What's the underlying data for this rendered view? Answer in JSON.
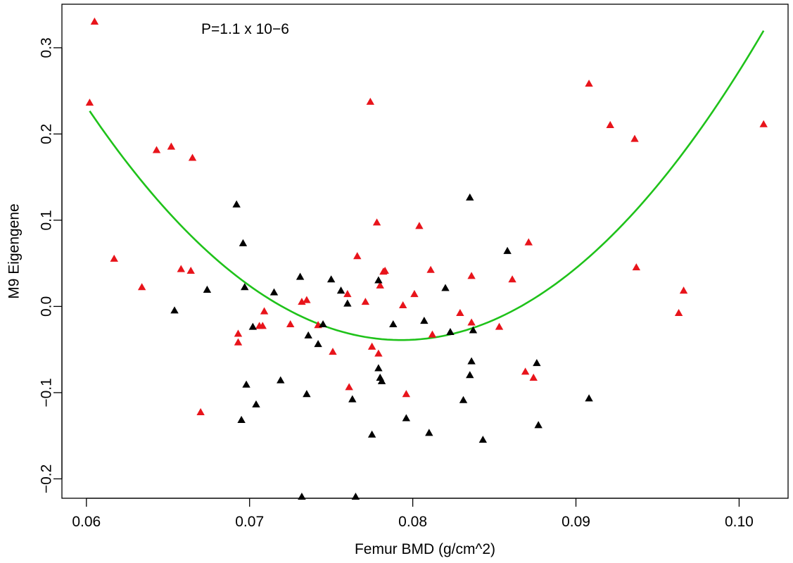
{
  "chart_data": {
    "type": "scatter",
    "title": "",
    "annotation": "P=1.1 x 10−6",
    "xlabel": "Femur BMD (g/cm^2)",
    "ylabel": "M9 Eigengene",
    "xlim": [
      0.0585,
      0.103
    ],
    "ylim": [
      -0.2225,
      0.3505
    ],
    "xticks": [
      0.06,
      0.07,
      0.08,
      0.09,
      0.1
    ],
    "xtick_labels": [
      "0.06",
      "0.07",
      "0.08",
      "0.09",
      "0.10"
    ],
    "yticks": [
      -0.2,
      -0.1,
      0.0,
      0.1,
      0.2,
      0.3
    ],
    "ytick_labels": [
      "−0.2",
      "−0.1",
      "0.0",
      "0.1",
      "0.2",
      "0.3"
    ],
    "grid": false,
    "marker": "triangle",
    "colors": {
      "red": "#e8141b",
      "black": "#000000",
      "fit": "#1fc21a"
    },
    "series": [
      {
        "color": "red",
        "points": [
          [
            0.0605,
            0.33
          ],
          [
            0.0602,
            0.236
          ],
          [
            0.0617,
            0.055
          ],
          [
            0.0634,
            0.022
          ],
          [
            0.0643,
            0.181
          ],
          [
            0.0652,
            0.185
          ],
          [
            0.0658,
            0.043
          ],
          [
            0.0664,
            0.041
          ],
          [
            0.0665,
            0.172
          ],
          [
            0.067,
            -0.123
          ],
          [
            0.0693,
            -0.032
          ],
          [
            0.0693,
            -0.042
          ],
          [
            0.0706,
            -0.023
          ],
          [
            0.0708,
            -0.023
          ],
          [
            0.0709,
            -0.006
          ],
          [
            0.0725,
            -0.021
          ],
          [
            0.0732,
            0.005
          ],
          [
            0.0735,
            0.007
          ],
          [
            0.0742,
            -0.022
          ],
          [
            0.0751,
            -0.053
          ],
          [
            0.076,
            0.014
          ],
          [
            0.0761,
            -0.094
          ],
          [
            0.0766,
            0.058
          ],
          [
            0.0771,
            0.005
          ],
          [
            0.0774,
            0.237
          ],
          [
            0.0775,
            -0.047
          ],
          [
            0.0778,
            0.097
          ],
          [
            0.0779,
            -0.055
          ],
          [
            0.078,
            0.024
          ],
          [
            0.0782,
            0.04
          ],
          [
            0.0783,
            0.041
          ],
          [
            0.0794,
            0.001
          ],
          [
            0.0796,
            -0.102
          ],
          [
            0.0801,
            0.014
          ],
          [
            0.0804,
            0.093
          ],
          [
            0.0811,
            0.042
          ],
          [
            0.0812,
            -0.033
          ],
          [
            0.0829,
            -0.008
          ],
          [
            0.0836,
            0.035
          ],
          [
            0.0836,
            -0.019
          ],
          [
            0.0853,
            -0.024
          ],
          [
            0.0861,
            0.031
          ],
          [
            0.0869,
            -0.076
          ],
          [
            0.0871,
            0.074
          ],
          [
            0.0874,
            -0.083
          ],
          [
            0.0908,
            0.258
          ],
          [
            0.0921,
            0.21
          ],
          [
            0.0936,
            0.194
          ],
          [
            0.0937,
            0.045
          ],
          [
            0.0963,
            -0.008
          ],
          [
            0.0966,
            0.018
          ],
          [
            0.1015,
            0.211
          ]
        ]
      },
      {
        "color": "black",
        "points": [
          [
            0.0654,
            -0.005
          ],
          [
            0.0674,
            0.019
          ],
          [
            0.0692,
            0.118
          ],
          [
            0.0696,
            0.073
          ],
          [
            0.0697,
            0.022
          ],
          [
            0.0695,
            -0.132
          ],
          [
            0.0698,
            -0.091
          ],
          [
            0.0702,
            -0.024
          ],
          [
            0.0704,
            -0.114
          ],
          [
            0.0715,
            0.016
          ],
          [
            0.0719,
            -0.086
          ],
          [
            0.0731,
            0.034
          ],
          [
            0.0732,
            -0.221
          ],
          [
            0.0735,
            -0.102
          ],
          [
            0.0736,
            -0.034
          ],
          [
            0.0742,
            -0.044
          ],
          [
            0.0745,
            -0.021
          ],
          [
            0.075,
            0.031
          ],
          [
            0.0756,
            0.018
          ],
          [
            0.076,
            0.003
          ],
          [
            0.0763,
            -0.108
          ],
          [
            0.0765,
            -0.221
          ],
          [
            0.0775,
            -0.149
          ],
          [
            0.0779,
            -0.072
          ],
          [
            0.0779,
            0.03
          ],
          [
            0.078,
            -0.083
          ],
          [
            0.0781,
            -0.087
          ],
          [
            0.0788,
            -0.021
          ],
          [
            0.0796,
            -0.13
          ],
          [
            0.0807,
            -0.017
          ],
          [
            0.081,
            -0.147
          ],
          [
            0.082,
            0.021
          ],
          [
            0.0823,
            -0.03
          ],
          [
            0.0831,
            -0.109
          ],
          [
            0.0835,
            0.126
          ],
          [
            0.0835,
            -0.08
          ],
          [
            0.0836,
            -0.064
          ],
          [
            0.0837,
            -0.028
          ],
          [
            0.0843,
            -0.155
          ],
          [
            0.0858,
            0.064
          ],
          [
            0.0876,
            -0.066
          ],
          [
            0.0877,
            -0.138
          ],
          [
            0.0908,
            -0.107
          ]
        ]
      }
    ],
    "fit": {
      "type": "quadratic",
      "x_range": [
        0.0602,
        0.1015
      ],
      "vertex_x": 0.0793,
      "vertex_y": -0.039,
      "a": 728.05
    }
  }
}
